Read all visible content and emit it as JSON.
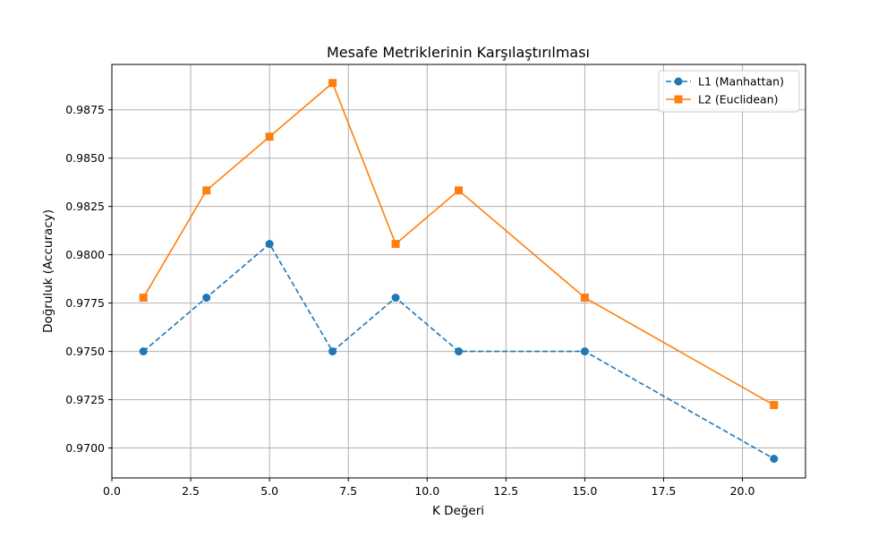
{
  "chart_data": {
    "type": "line",
    "title": "Mesafe Metriklerinin Karşılaştırılması",
    "xlabel": "K Değeri",
    "ylabel": "Doğruluk (Accuracy)",
    "xlim": [
      0.0,
      22.0
    ],
    "ylim": [
      0.96845,
      0.98985
    ],
    "xticks": [
      0.0,
      2.5,
      5.0,
      7.5,
      10.0,
      12.5,
      15.0,
      17.5,
      20.0
    ],
    "xtick_labels": [
      "0.0",
      "2.5",
      "5.0",
      "7.5",
      "10.0",
      "12.5",
      "15.0",
      "17.5",
      "20.0"
    ],
    "yticks": [
      0.97,
      0.9725,
      0.975,
      0.9775,
      0.98,
      0.9825,
      0.985,
      0.9875
    ],
    "ytick_labels": [
      "0.9700",
      "0.9725",
      "0.9750",
      "0.9775",
      "0.9800",
      "0.9825",
      "0.9850",
      "0.9875"
    ],
    "grid": true,
    "legend_position": "top-right",
    "series": [
      {
        "name": "L1 (Manhattan)",
        "color": "#1f77b4",
        "linestyle": "dashed",
        "marker": "circle",
        "x": [
          1,
          3,
          5,
          7,
          9,
          11,
          15,
          21
        ],
        "y": [
          0.975,
          0.97778,
          0.98056,
          0.975,
          0.97778,
          0.975,
          0.975,
          0.96944
        ]
      },
      {
        "name": "L2 (Euclidean)",
        "color": "#ff7f0e",
        "linestyle": "solid",
        "marker": "square",
        "x": [
          1,
          3,
          5,
          7,
          9,
          11,
          15,
          21
        ],
        "y": [
          0.97778,
          0.98333,
          0.98611,
          0.98889,
          0.98056,
          0.98333,
          0.97778,
          0.97222
        ]
      }
    ]
  }
}
